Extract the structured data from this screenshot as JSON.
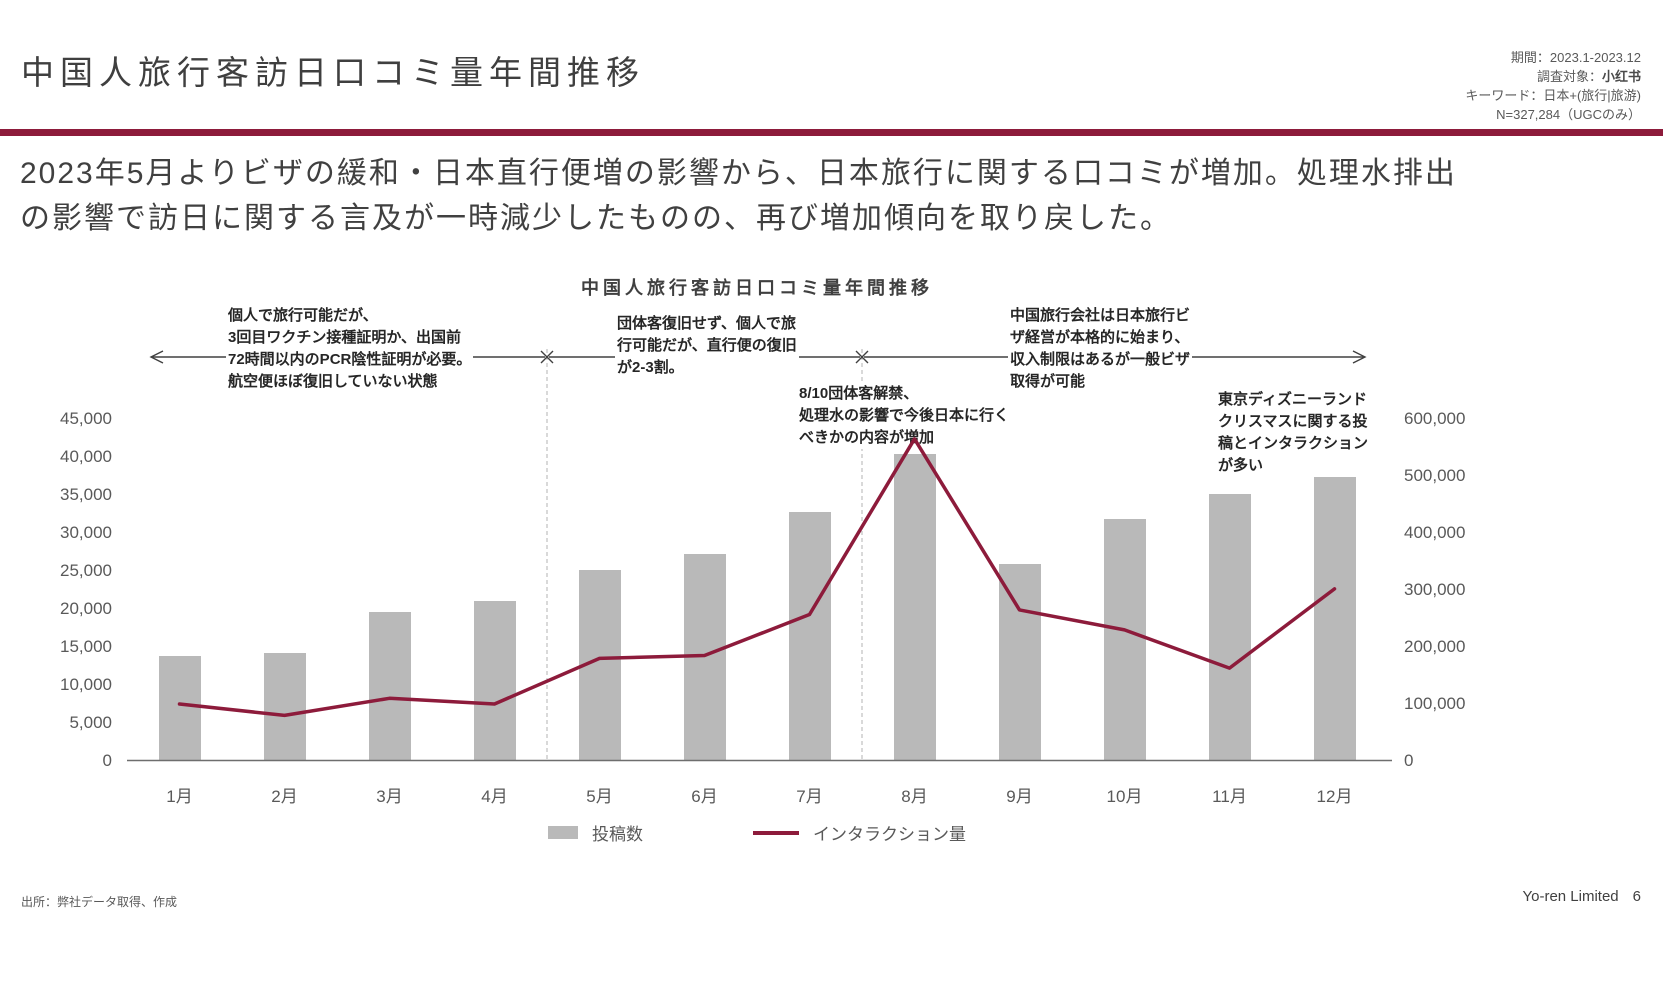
{
  "header": {
    "title": "中国人旅行客訪日口コミ量年間推移",
    "meta": {
      "period": "期間：2023.1-2023.12",
      "target_label": "調査対象：",
      "target_value": "小红书",
      "keyword": "キーワード：日本+(旅行|旅游)",
      "sample": "N=327,284（UGCのみ）"
    }
  },
  "summary": "2023年5月よりビザの緩和・日本直行便増の影響から、日本旅行に関する口コミが増加。処理水排出\nの影響で訪日に関する言及が一時減少したものの、再び増加傾向を取り戻した。",
  "colors": {
    "accent": "#8d1b3b",
    "bar": "#b9b9b9"
  },
  "chart_data": {
    "type": "bar+line",
    "title": "中国人旅行客訪日口コミ量年間推移",
    "categories": [
      "1月",
      "2月",
      "3月",
      "4月",
      "5月",
      "6月",
      "7月",
      "8月",
      "9月",
      "10月",
      "11月",
      "12月"
    ],
    "series": [
      {
        "name": "投稿数",
        "type": "bar",
        "axis": "left",
        "color": "#b9b9b9",
        "values": [
          13800,
          14200,
          19600,
          21100,
          25100,
          27300,
          32800,
          40400,
          25900,
          31900,
          35100,
          37500
        ]
      },
      {
        "name": "インタラクション量",
        "type": "line",
        "axis": "right",
        "color": "#8d1b3b",
        "values": [
          100000,
          80000,
          110000,
          100000,
          180000,
          185000,
          257000,
          565000,
          265000,
          230000,
          163000,
          302000
        ]
      }
    ],
    "left_axis": {
      "min": 0,
      "max": 45000,
      "step": 5000,
      "ticks": [
        45000,
        40000,
        35000,
        30000,
        25000,
        20000,
        15000,
        10000,
        5000,
        0
      ]
    },
    "right_axis": {
      "min": 0,
      "max": 600000,
      "step": 100000,
      "ticks": [
        600000,
        500000,
        400000,
        300000,
        200000,
        100000,
        0
      ]
    },
    "grid": "off",
    "legend_position": "bottom-center",
    "annotations": {
      "phase1": "個人で旅行可能だが、\n3回目ワクチン接種証明か、出国前\n72時間以内のPCR陰性証明が必要。\n航空便ほぼ復旧していない状態",
      "phase2": "団体客復旧せず、個人で旅\n行可能だが、直行便の復旧\nが2-3割。",
      "phase3": "中国旅行会社は日本旅行ビ\nザ経営が本格的に始まり、\n収入制限はあるが一般ビザ\n取得が可能",
      "august": "8/10団体客解禁、\n処理水の影響で今後日本に行く\nべきかの内容が増加",
      "december": "東京ディズニーランド\nクリスマスに関する投\n稿とインタラクション\nが多い"
    },
    "legend": [
      "投稿数",
      "インタラクション量"
    ]
  },
  "footer": {
    "source": "出所：弊社データ取得、作成",
    "company": "Yo-ren Limited",
    "page": "6"
  }
}
